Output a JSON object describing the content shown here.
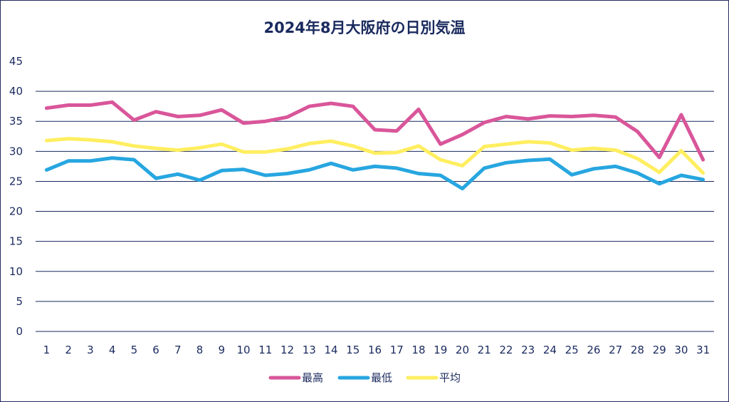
{
  "chart_data": {
    "type": "line",
    "title": "2024年8月大阪府の日別気温",
    "x": [
      1,
      2,
      3,
      4,
      5,
      6,
      7,
      8,
      9,
      10,
      11,
      12,
      13,
      14,
      15,
      16,
      17,
      18,
      19,
      20,
      21,
      22,
      23,
      24,
      25,
      26,
      27,
      28,
      29,
      30,
      31
    ],
    "ylim": [
      0,
      45
    ],
    "yticks": [
      0,
      5,
      10,
      15,
      20,
      25,
      30,
      35,
      40,
      45
    ],
    "grid": true,
    "legend_position": "bottom",
    "series": [
      {
        "name": "最高",
        "color": "#d9569a",
        "values": [
          37.2,
          37.7,
          37.7,
          38.2,
          35.2,
          36.6,
          35.8,
          36.0,
          36.9,
          34.7,
          35.0,
          35.7,
          37.5,
          38.0,
          37.5,
          33.6,
          33.4,
          37.0,
          31.2,
          32.8,
          34.8,
          35.8,
          35.4,
          35.9,
          35.8,
          36.0,
          35.7,
          33.3,
          29.0,
          36.1,
          28.6
        ]
      },
      {
        "name": "最低",
        "color": "#27a6e0",
        "values": [
          26.9,
          28.4,
          28.4,
          28.9,
          28.6,
          25.5,
          26.2,
          25.2,
          26.8,
          27.0,
          26.0,
          26.3,
          26.9,
          28.0,
          26.9,
          27.5,
          27.2,
          26.3,
          26.0,
          23.8,
          27.2,
          28.1,
          28.5,
          28.7,
          26.1,
          27.1,
          27.5,
          26.4,
          24.6,
          26.0,
          25.3
        ]
      },
      {
        "name": "平均",
        "color": "#ffee60",
        "values": [
          31.8,
          32.1,
          31.9,
          31.6,
          30.9,
          30.5,
          30.2,
          30.6,
          31.2,
          29.9,
          29.9,
          30.4,
          31.3,
          31.7,
          30.9,
          29.7,
          29.8,
          30.9,
          28.6,
          27.6,
          30.8,
          31.2,
          31.6,
          31.4,
          30.2,
          30.5,
          30.2,
          28.8,
          26.5,
          30.1,
          26.4
        ]
      }
    ]
  }
}
